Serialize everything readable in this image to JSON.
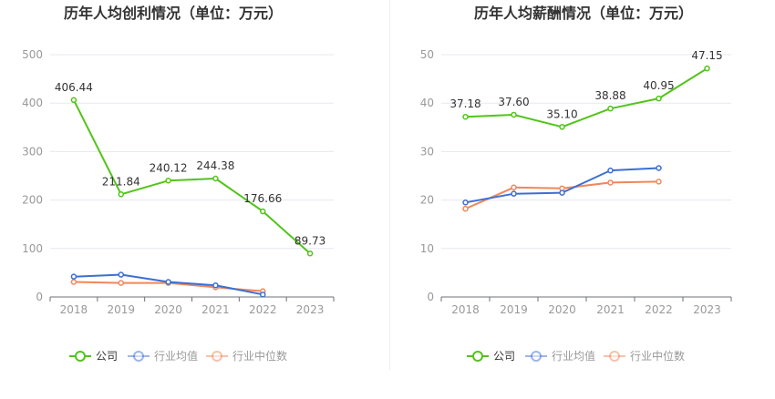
{
  "chart_data": [
    {
      "type": "line",
      "title": "历年人均创利情况（单位：万元）",
      "categories": [
        "2018",
        "2019",
        "2020",
        "2021",
        "2022",
        "2023"
      ],
      "ylim": [
        0,
        500
      ],
      "yticks": [
        0,
        100,
        200,
        300,
        400,
        500
      ],
      "grid": true,
      "legend_position": "bottom-center",
      "series": [
        {
          "name": "公司",
          "color": "#52c41a",
          "values": [
            406.44,
            211.84,
            240.12,
            244.38,
            176.66,
            89.73
          ],
          "labels": [
            "406.44",
            "211.84",
            "240.12",
            "244.38",
            "176.66",
            "89.73"
          ]
        },
        {
          "name": "行业均值",
          "color": "#3b6fd4",
          "values": [
            42,
            46,
            31,
            24,
            5,
            null
          ],
          "labels": []
        },
        {
          "name": "行业中位数",
          "color": "#f0875a",
          "values": [
            31,
            29,
            29,
            20,
            12,
            null
          ],
          "labels": []
        }
      ]
    },
    {
      "type": "line",
      "title": "历年人均薪酬情况（单位：万元）",
      "categories": [
        "2018",
        "2019",
        "2020",
        "2021",
        "2022",
        "2023"
      ],
      "ylim": [
        0,
        50
      ],
      "yticks": [
        0,
        10,
        20,
        30,
        40,
        50
      ],
      "grid": true,
      "legend_position": "bottom-center",
      "series": [
        {
          "name": "公司",
          "color": "#52c41a",
          "values": [
            37.18,
            37.6,
            35.1,
            38.88,
            40.95,
            47.15
          ],
          "labels": [
            "37.18",
            "37.60",
            "35.10",
            "38.88",
            "40.95",
            "47.15"
          ]
        },
        {
          "name": "行业均值",
          "color": "#3b6fd4",
          "values": [
            19.5,
            21.3,
            21.5,
            26.1,
            26.6,
            null
          ],
          "labels": []
        },
        {
          "name": "行业中位数",
          "color": "#f0875a",
          "values": [
            18.2,
            22.6,
            22.4,
            23.6,
            23.8,
            null
          ],
          "labels": []
        }
      ]
    }
  ]
}
